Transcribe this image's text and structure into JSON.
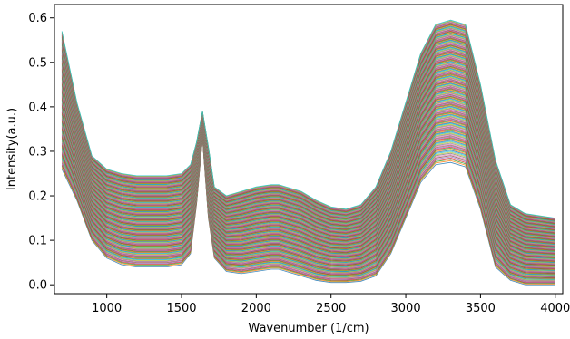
{
  "chart_data": {
    "type": "line",
    "title": "",
    "xlabel": "Wavenumber (1/cm)",
    "ylabel": "Intensity(a.u.)",
    "xlim": [
      650,
      4050
    ],
    "ylim": [
      -0.02,
      0.63
    ],
    "x_ticks": [
      1000,
      1500,
      2000,
      2500,
      3000,
      3500,
      4000
    ],
    "y_ticks": [
      0.0,
      0.1,
      0.2,
      0.3,
      0.4,
      0.5,
      0.6
    ],
    "x_tick_labels": [
      "1000",
      "1500",
      "2000",
      "2500",
      "3000",
      "3500",
      "4000"
    ],
    "y_tick_labels": [
      "0.0",
      "0.1",
      "0.2",
      "0.3",
      "0.4",
      "0.5",
      "0.6"
    ],
    "grid": false,
    "legend": "none",
    "series_count": 180,
    "series_template": {
      "x": [
        700,
        800,
        900,
        1000,
        1100,
        1200,
        1300,
        1400,
        1500,
        1560,
        1600,
        1640,
        1680,
        1720,
        1800,
        1900,
        2000,
        2100,
        2150,
        2200,
        2300,
        2400,
        2500,
        2600,
        2700,
        2800,
        2900,
        3000,
        3100,
        3200,
        3300,
        3400,
        3500,
        3600,
        3700,
        3800,
        3900,
        4000
      ],
      "upper_y": [
        0.57,
        0.41,
        0.29,
        0.26,
        0.25,
        0.245,
        0.245,
        0.245,
        0.25,
        0.27,
        0.32,
        0.39,
        0.31,
        0.22,
        0.2,
        0.21,
        0.22,
        0.225,
        0.225,
        0.22,
        0.21,
        0.19,
        0.175,
        0.17,
        0.18,
        0.22,
        0.3,
        0.41,
        0.52,
        0.585,
        0.595,
        0.585,
        0.45,
        0.28,
        0.18,
        0.16,
        0.155,
        0.15
      ],
      "lower_y": [
        0.26,
        0.19,
        0.1,
        0.06,
        0.045,
        0.04,
        0.04,
        0.04,
        0.045,
        0.07,
        0.18,
        0.33,
        0.15,
        0.06,
        0.03,
        0.025,
        0.03,
        0.035,
        0.035,
        0.03,
        0.02,
        0.01,
        0.005,
        0.005,
        0.008,
        0.02,
        0.07,
        0.15,
        0.23,
        0.27,
        0.275,
        0.265,
        0.17,
        0.04,
        0.01,
        0.0,
        0.0,
        0.0
      ]
    },
    "colors": [
      "#1f77b4",
      "#ff7f0e",
      "#2ca02c",
      "#d62728",
      "#9467bd",
      "#8c564b",
      "#e377c2",
      "#7f7f7f",
      "#bcbd22",
      "#17becf"
    ]
  }
}
